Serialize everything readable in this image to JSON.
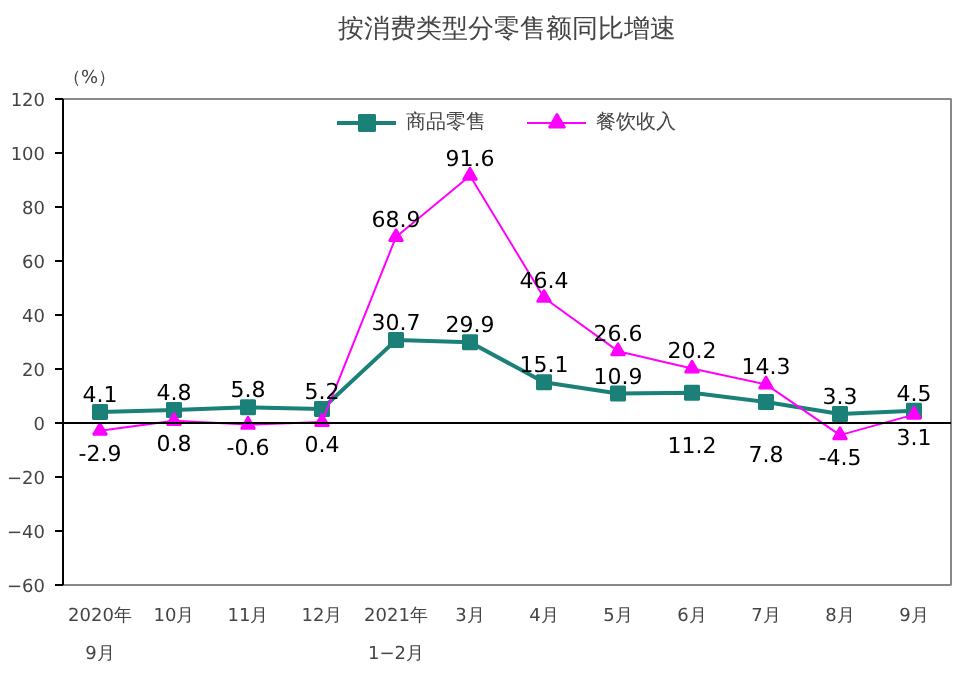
{
  "chart_data": {
    "type": "line",
    "title": "按消费类型分零售额同比增速",
    "ylabel": "（%）",
    "categories": [
      "2020年\n9月",
      "10月",
      "11月",
      "12月",
      "2021年\n1−2月",
      "3月",
      "4月",
      "5月",
      "6月",
      "7月",
      "8月",
      "9月"
    ],
    "series": [
      {
        "name": "商品零售",
        "color": "#1a8078",
        "marker": "square",
        "values": [
          4.1,
          4.8,
          5.8,
          5.2,
          30.7,
          29.9,
          15.1,
          10.9,
          11.2,
          7.8,
          3.3,
          4.5
        ]
      },
      {
        "name": "餐饮收入",
        "color": "#ff00ff",
        "marker": "triangle",
        "values": [
          -2.9,
          0.8,
          -0.6,
          0.4,
          68.9,
          91.6,
          46.4,
          26.6,
          20.2,
          14.3,
          -4.5,
          3.1
        ]
      }
    ],
    "ref_lines": [
      {
        "axis": "y",
        "value": 0,
        "color": "#000000"
      }
    ],
    "ylim": [
      -60,
      120
    ],
    "yticks": [
      -60,
      -40,
      -20,
      0,
      20,
      40,
      60,
      80,
      100,
      120
    ],
    "grid": false,
    "legend": "top",
    "data_labels": true
  }
}
